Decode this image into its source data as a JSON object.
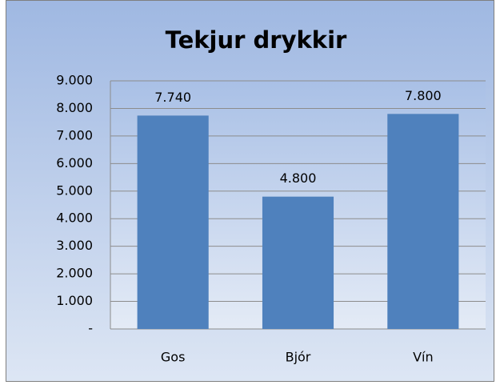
{
  "chart_data": {
    "type": "bar",
    "title": "Tekjur drykkir",
    "categories": [
      "Gos",
      "Bjór",
      "Vín"
    ],
    "values": [
      7740,
      4800,
      7800
    ],
    "value_labels": [
      "7.740",
      "4.800",
      "7.800"
    ],
    "color": "#4f81bd",
    "ylim": [
      0,
      9000
    ],
    "yticks": [
      {
        "value": 0,
        "label": "-"
      },
      {
        "value": 1000,
        "label": "1.000"
      },
      {
        "value": 2000,
        "label": "2.000"
      },
      {
        "value": 3000,
        "label": "3.000"
      },
      {
        "value": 4000,
        "label": "4.000"
      },
      {
        "value": 5000,
        "label": "5.000"
      },
      {
        "value": 6000,
        "label": "6.000"
      },
      {
        "value": 7000,
        "label": "7.000"
      },
      {
        "value": 8000,
        "label": "8.000"
      },
      {
        "value": 9000,
        "label": "9.000"
      }
    ],
    "grid": true
  }
}
